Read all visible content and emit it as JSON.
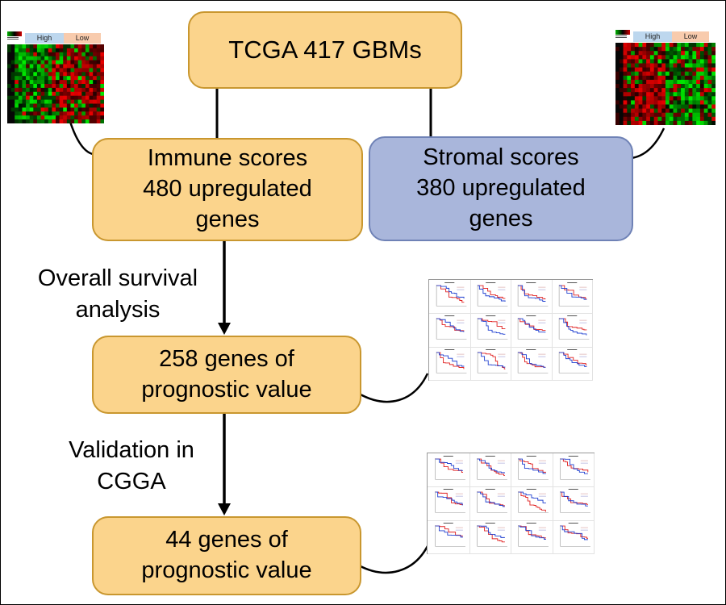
{
  "figure": {
    "boxes": {
      "tcga": {
        "label": "TCGA 417 GBMs"
      },
      "immune": {
        "lines": [
          "Immune scores",
          "480 upregulated",
          "genes"
        ]
      },
      "stromal": {
        "lines": [
          "Stromal scores",
          "380 upregulated",
          "genes"
        ]
      },
      "prognostic258": {
        "lines": [
          "258 genes of",
          "prognostic value"
        ]
      },
      "prognostic44": {
        "lines": [
          "44 genes of",
          "prognostic value"
        ]
      }
    },
    "annotations": {
      "overall_survival": {
        "lines": [
          "Overall survival",
          "analysis"
        ]
      },
      "validation": {
        "lines": [
          "Validation in",
          "CGGA"
        ]
      }
    },
    "heatmaps": {
      "left": {
        "high_label": "High",
        "low_label": "Low"
      },
      "right": {
        "high_label": "High",
        "low_label": "Low"
      }
    }
  },
  "colors": {
    "orange-fill": "#fbd48c",
    "orange-border": "#c9972f",
    "blue-fill": "#a9b6db",
    "blue-border": "#6f82b6",
    "high-bg": "#bdd7ee",
    "low-bg": "#f8cbad",
    "line": "#000000",
    "heatmap-green": "#00a000",
    "heatmap-red": "#cc0000",
    "km-red": "#e02020",
    "km-blue": "#2040d0"
  }
}
